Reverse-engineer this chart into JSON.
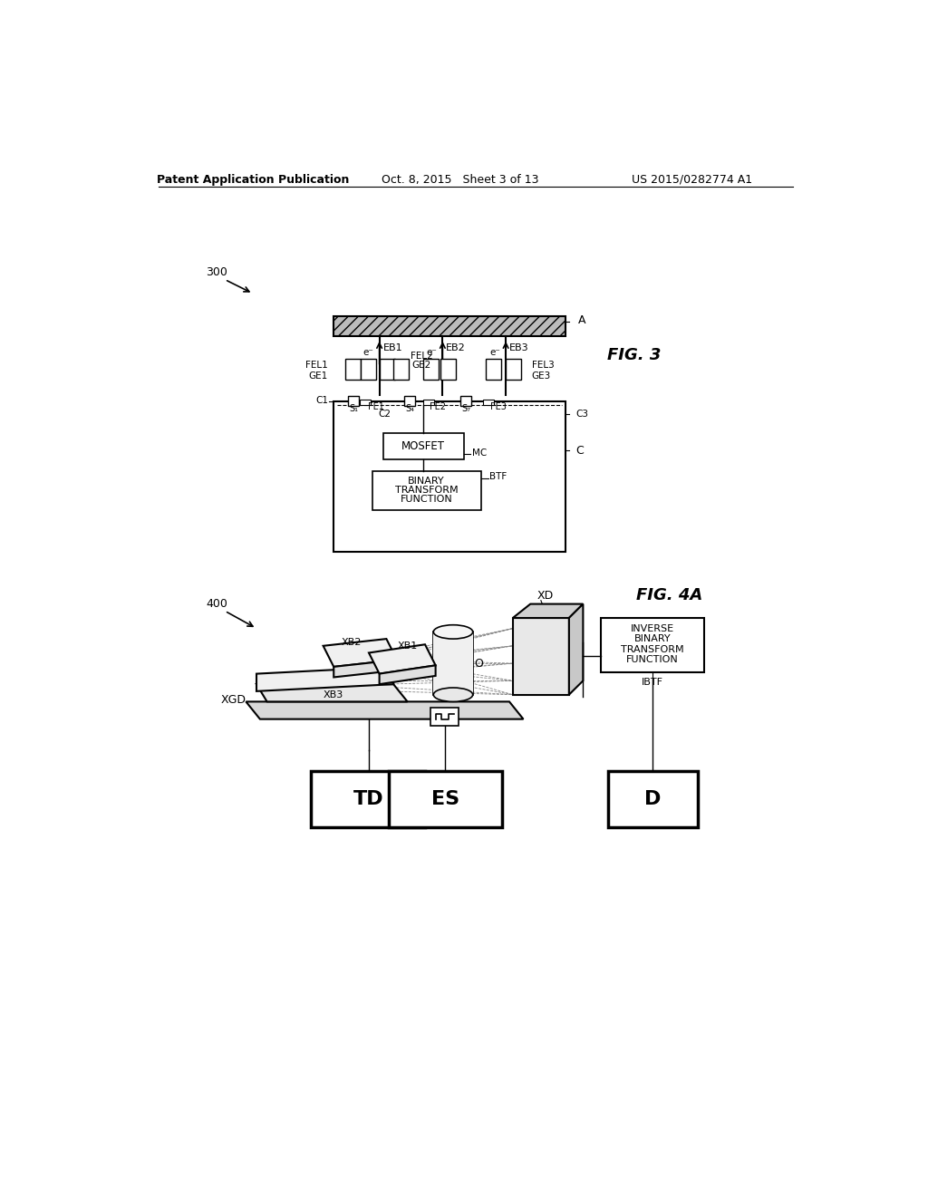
{
  "header_left": "Patent Application Publication",
  "header_mid": "Oct. 8, 2015   Sheet 3 of 13",
  "header_right": "US 2015/0282774 A1",
  "bg_color": "#ffffff"
}
